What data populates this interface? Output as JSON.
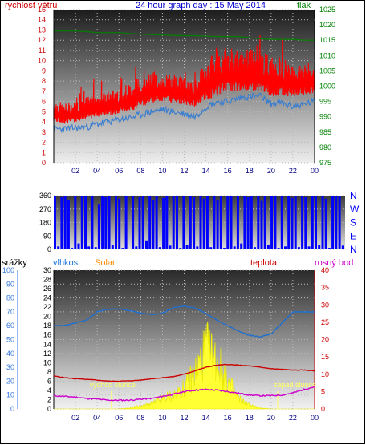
{
  "chart_data": [
    {
      "type": "line",
      "title": "24 hour graph day : 15 May 2014",
      "ylabel": "rychlost větru",
      "y2label": "tlak",
      "x_ticks": [
        "02",
        "04",
        "06",
        "08",
        "10",
        "12",
        "14",
        "16",
        "18",
        "20",
        "22",
        "00"
      ],
      "y_ticks": [
        "0",
        "1",
        "2",
        "3",
        "4",
        "5",
        "6",
        "7",
        "8",
        "9",
        "10",
        "11",
        "12",
        "13",
        "14",
        "15"
      ],
      "y2_ticks": [
        "975",
        "980",
        "985",
        "990",
        "995",
        "1000",
        "1005",
        "1010",
        "1015",
        "1020",
        "1025"
      ],
      "ylim": [
        0,
        15
      ],
      "y2lim": [
        975,
        1025
      ],
      "grid": true,
      "hours": [
        0,
        1,
        2,
        3,
        4,
        5,
        6,
        7,
        8,
        9,
        10,
        11,
        12,
        13,
        14,
        15,
        16,
        17,
        18,
        19,
        20,
        21,
        22,
        23,
        24
      ],
      "series": [
        {
          "name": "wind_gust_upper",
          "color": "#ff0000",
          "axis": "y",
          "values": [
            6.2,
            5.8,
            6.0,
            6.5,
            6.8,
            7.0,
            7.5,
            7.8,
            8.5,
            9.0,
            8.8,
            8.6,
            8.4,
            8.0,
            10.0,
            11.5,
            11.0,
            11.0,
            11.2,
            11.0,
            10.5,
            10.5,
            9.5,
            10.0,
            9.5
          ]
        },
        {
          "name": "wind_lower",
          "color": "#ff0000",
          "axis": "y",
          "values": [
            4.0,
            3.8,
            4.0,
            4.2,
            4.5,
            4.6,
            4.8,
            5.0,
            5.5,
            5.8,
            6.0,
            5.8,
            5.6,
            5.5,
            6.0,
            6.5,
            7.0,
            7.0,
            7.0,
            7.0,
            6.5,
            6.5,
            6.5,
            6.5,
            6.8
          ]
        },
        {
          "name": "wind_average",
          "color": "#3a7ed0",
          "axis": "y",
          "values": [
            3.3,
            3.3,
            3.4,
            3.5,
            3.8,
            4.0,
            4.2,
            4.4,
            4.7,
            5.0,
            5.2,
            5.0,
            4.8,
            4.5,
            5.5,
            6.0,
            6.0,
            6.3,
            6.5,
            6.5,
            5.8,
            5.8,
            5.5,
            5.7,
            6.0
          ]
        },
        {
          "name": "pressure",
          "color": "#008000",
          "axis": "y2",
          "values": [
            1018.0,
            1018.0,
            1018.0,
            1017.8,
            1017.5,
            1017.5,
            1017.5,
            1017.2,
            1017.0,
            1016.8,
            1016.7,
            1016.6,
            1016.5,
            1016.5,
            1016.3,
            1016.2,
            1016.2,
            1016.2,
            1015.8,
            1015.5,
            1015.3,
            1015.3,
            1015.3,
            1015.0,
            1015.0
          ]
        }
      ]
    },
    {
      "type": "bar",
      "title": "",
      "ylim": [
        0,
        360
      ],
      "y_ticks": [
        "0",
        "90",
        "180",
        "270",
        "360"
      ],
      "x_ticks": [
        "02",
        "04",
        "06",
        "08",
        "10",
        "12",
        "14",
        "16",
        "18",
        "20",
        "22",
        "00"
      ],
      "compass": [
        "N",
        "W",
        "S",
        "E",
        "N"
      ],
      "series": [
        {
          "name": "wind_direction",
          "color": "#0000ff",
          "values": [
            360,
            20,
            350,
            360,
            330,
            10,
            360,
            40,
            360,
            355,
            20,
            360,
            15,
            300,
            360,
            350,
            360,
            30,
            360,
            340,
            10,
            360,
            5,
            360,
            20,
            350,
            360,
            60,
            360,
            330,
            360,
            15,
            345,
            360,
            25,
            360,
            355,
            10,
            360,
            30,
            360,
            350,
            20,
            360,
            340,
            360,
            15,
            360,
            330,
            360,
            10,
            360,
            355,
            20,
            360,
            40,
            360,
            350,
            360,
            15,
            360,
            325,
            360,
            30,
            360,
            355,
            10,
            360,
            20,
            360,
            345,
            360,
            15,
            360,
            350,
            20,
            360,
            360,
            30,
            360,
            340,
            10,
            360,
            355,
            360,
            25
          ]
        }
      ]
    },
    {
      "type": "line",
      "title": "",
      "labels": {
        "rain": "srážky",
        "humidity": "vlhkost",
        "solar": "Solar",
        "temperature": "teplota",
        "dewpoint": "rosný bod"
      },
      "rain_ticks": [
        "0",
        "10",
        "20",
        "30",
        "40",
        "50",
        "60",
        "70",
        "80",
        "90",
        "100"
      ],
      "humidity_ticks": [
        "0",
        "2",
        "4",
        "6",
        "8",
        "10",
        "12",
        "14",
        "16",
        "18",
        "20",
        "22",
        "24",
        "26",
        "28",
        "30"
      ],
      "temp_ticks": [
        "0",
        "5",
        "10",
        "15",
        "20",
        "25",
        "30",
        "35",
        "40"
      ],
      "x_ticks": [
        "02",
        "04",
        "06",
        "08",
        "10",
        "12",
        "14",
        "16",
        "18",
        "20",
        "22",
        "00"
      ],
      "annotations": [
        "východ slunce",
        "západ slunce"
      ],
      "sunrise_hour": 5.3,
      "sunset_hour": 20.6,
      "templim": [
        0,
        40
      ],
      "rainlim": [
        0,
        100
      ],
      "grid": true,
      "hours": [
        0,
        1,
        2,
        3,
        4,
        5,
        6,
        7,
        8,
        9,
        10,
        11,
        12,
        13,
        14,
        15,
        16,
        17,
        18,
        19,
        20,
        21,
        22,
        23,
        24
      ],
      "series": [
        {
          "name": "humidity",
          "color": "#1e6fd0",
          "axis": "rain",
          "values": [
            60,
            60,
            62,
            64,
            70,
            72,
            72,
            71,
            69,
            68,
            69,
            73,
            74,
            73,
            69,
            64,
            60,
            56,
            53,
            52,
            54,
            62,
            70,
            70,
            70
          ]
        },
        {
          "name": "temperature",
          "color": "#cc0000",
          "axis": "temp",
          "values": [
            9.5,
            9.0,
            8.7,
            8.5,
            8.3,
            8.0,
            8.0,
            8.1,
            8.3,
            8.7,
            9.0,
            9.3,
            10.0,
            11.0,
            12.0,
            12.6,
            12.8,
            12.6,
            12.4,
            12.0,
            11.6,
            11.4,
            11.2,
            11.2,
            11.0
          ]
        },
        {
          "name": "dewpoint",
          "color": "#cc00cc",
          "axis": "temp",
          "values": [
            3.8,
            3.6,
            3.4,
            3.0,
            2.8,
            2.5,
            2.5,
            2.5,
            2.8,
            3.0,
            3.6,
            4.2,
            5.0,
            5.4,
            5.6,
            5.4,
            5.0,
            4.5,
            4.0,
            3.8,
            3.8,
            4.0,
            4.6,
            5.6,
            6.4
          ]
        },
        {
          "name": "solar",
          "color": "#ffff33",
          "axis": "rain",
          "values": [
            0,
            0,
            0,
            0,
            0,
            0,
            0,
            1,
            3,
            5,
            10,
            14,
            20,
            36,
            60,
            48,
            28,
            10,
            4,
            1,
            0,
            0,
            0,
            0,
            0
          ]
        }
      ]
    }
  ]
}
